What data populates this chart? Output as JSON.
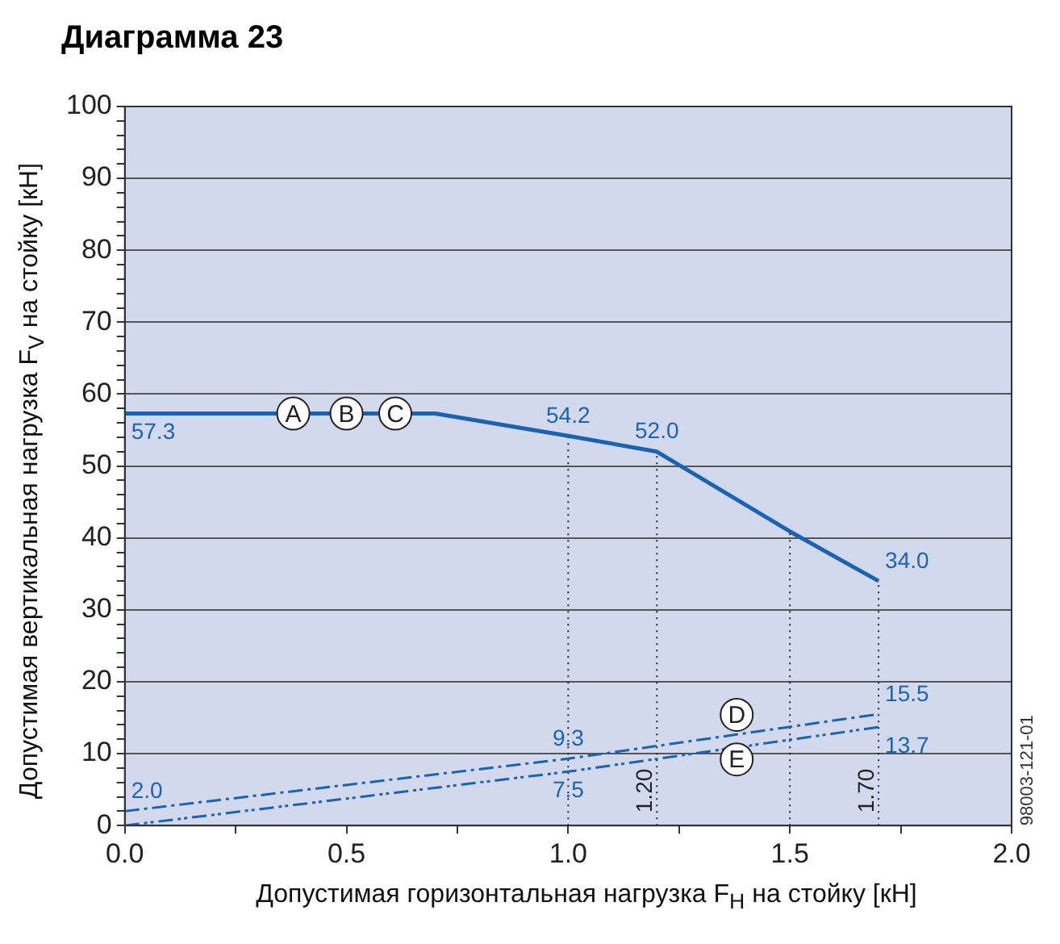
{
  "chart_data": {
    "type": "line",
    "title": "Диаграмма 23",
    "xlabel": "Допустимая горизонтальная нагрузка F$_{H}$ на стойку [кН]",
    "ylabel": "Допустимая вертикальная нагрузка F$_{V}$ на стойку [кН]",
    "xlim": [
      0,
      2
    ],
    "ylim": [
      0,
      100
    ],
    "xticks": [
      {
        "value": 0,
        "label": "0.0"
      },
      {
        "value": 0.25,
        "label": null
      },
      {
        "value": 0.5,
        "label": "0.5"
      },
      {
        "value": 0.75,
        "label": null
      },
      {
        "value": 1,
        "label": "1.0"
      },
      {
        "value": 1.25,
        "label": null
      },
      {
        "value": 1.5,
        "label": "1.5"
      },
      {
        "value": 1.75,
        "label": null
      },
      {
        "value": 2,
        "label": "2.0"
      }
    ],
    "yticks": [
      0,
      {
        "value": 2,
        "label": null
      },
      {
        "value": 4,
        "label": null
      },
      {
        "value": 6,
        "label": null
      },
      {
        "value": 8,
        "label": null
      },
      10,
      {
        "value": 12,
        "label": null
      },
      {
        "value": 14,
        "label": null
      },
      {
        "value": 16,
        "label": null
      },
      {
        "value": 18,
        "label": null
      },
      20,
      {
        "value": 22,
        "label": null
      },
      {
        "value": 24,
        "label": null
      },
      {
        "value": 26,
        "label": null
      },
      {
        "value": 28,
        "label": null
      },
      30,
      {
        "value": 32,
        "label": null
      },
      {
        "value": 34,
        "label": null
      },
      {
        "value": 36,
        "label": null
      },
      {
        "value": 38,
        "label": null
      },
      40,
      {
        "value": 42,
        "label": null
      },
      {
        "value": 44,
        "label": null
      },
      {
        "value": 46,
        "label": null
      },
      {
        "value": 48,
        "label": null
      },
      50,
      {
        "value": 52,
        "label": null
      },
      {
        "value": 54,
        "label": null
      },
      {
        "value": 56,
        "label": null
      },
      {
        "value": 58,
        "label": null
      },
      60,
      {
        "value": 62,
        "label": null
      },
      {
        "value": 64,
        "label": null
      },
      {
        "value": 66,
        "label": null
      },
      {
        "value": 68,
        "label": null
      },
      70,
      {
        "value": 72,
        "label": null
      },
      {
        "value": 74,
        "label": null
      },
      {
        "value": 76,
        "label": null
      },
      {
        "value": 78,
        "label": null
      },
      80,
      {
        "value": 82,
        "label": null
      },
      {
        "value": 84,
        "label": null
      },
      {
        "value": 86,
        "label": null
      },
      {
        "value": 88,
        "label": null
      },
      90,
      {
        "value": 92,
        "label": null
      },
      {
        "value": 94,
        "label": null
      },
      {
        "value": 96,
        "label": null
      },
      {
        "value": 98,
        "label": null
      },
      100
    ],
    "grid": "y",
    "legend": false,
    "marker": "none",
    "series": [
      {
        "color": "#1b63b0",
        "line_style": "solid",
        "x": [
          0,
          0.7,
          1.0,
          1.2,
          1.5,
          1.7
        ],
        "values": [
          57.3,
          57.3,
          54.2,
          52.0,
          40.9,
          34.0
        ],
        "value_labels": [
          "57.3",
          null,
          "54.2",
          "52.0",
          null,
          "34.0"
        ]
      },
      {
        "color": "#1b63b0",
        "line_style": "dashed",
        "x": [
          0,
          1.0,
          1.7
        ],
        "values": [
          2.0,
          9.3,
          15.5
        ],
        "value_labels": [
          "2.0",
          "9.3",
          "15.5"
        ]
      },
      {
        "color": "#1b63b0",
        "line_style": "dashed",
        "x": [
          0,
          1.0,
          1.7
        ],
        "values": [
          0,
          7.5,
          13.7
        ],
        "value_labels": [
          null,
          "7.5",
          "13.7"
        ]
      }
    ],
    "ref_lines": [
      {
        "axis": "x",
        "value": 1.0,
        "label": null,
        "color": "#222222",
        "line_style": "dotted"
      },
      {
        "axis": "x",
        "value": 1.2,
        "label": "1.20",
        "color": "#222222",
        "line_style": "dotted"
      },
      {
        "axis": "x",
        "value": 1.5,
        "label": null,
        "color": "#222222",
        "line_style": "dotted"
      },
      {
        "axis": "x",
        "value": 1.7,
        "label": "1.70",
        "color": "#222222",
        "line_style": "dotted"
      }
    ],
    "annotations": [
      {
        "text": "A",
        "x": 0.38,
        "y": 57.3
      },
      {
        "text": "B",
        "x": 0.5,
        "y": 57.3
      },
      {
        "text": "C",
        "x": 0.61,
        "y": 57.3
      },
      {
        "text": "D",
        "x": 1.38,
        "y": 15.4
      },
      {
        "text": "E",
        "x": 1.38,
        "y": 9.2
      },
      "98003-121-01"
    ]
  }
}
